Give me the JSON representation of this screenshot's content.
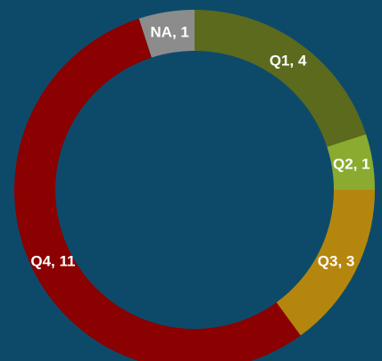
{
  "chart_data": {
    "type": "donut",
    "values": [
      1,
      4,
      1,
      3,
      11
    ],
    "value_labels": [
      "NA, 1",
      "Q1, 4",
      "Q2, 1",
      "Q3, 3",
      "Q4, 11"
    ],
    "colors": [
      "#8c8c8c",
      "#5b6a1c",
      "#8aab2f",
      "#b5860d",
      "#8b0000"
    ]
  }
}
